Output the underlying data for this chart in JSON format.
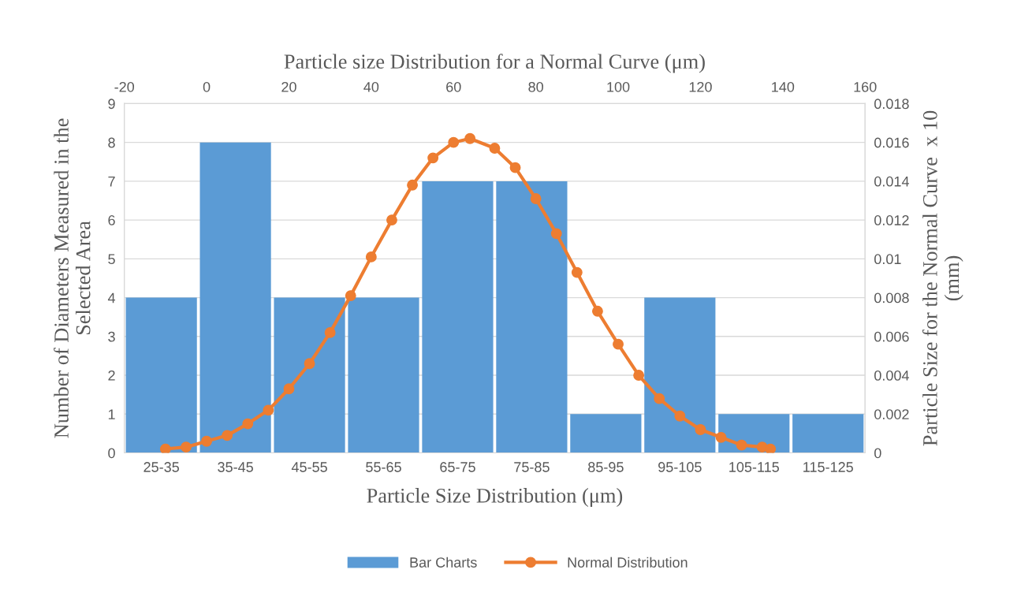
{
  "chart_data": [
    {
      "type": "bar",
      "xlabel": "Particle Size Distribution (μm)",
      "ylabel": "Number of Diameters Measured in the\nSelected Area",
      "categories": [
        "25-35",
        "35-45",
        "45-55",
        "55-65",
        "65-75",
        "75-85",
        "85-95",
        "95-105",
        "105-115",
        "115-125"
      ],
      "series": [
        {
          "name": "Bar Charts",
          "color": "#5b9bd5",
          "values": [
            4,
            8,
            4,
            4,
            7,
            7,
            1,
            4,
            1,
            1
          ]
        }
      ],
      "ylim": [
        0,
        9
      ],
      "yticks": [
        0,
        1,
        2,
        3,
        4,
        5,
        6,
        7,
        8,
        9
      ],
      "grid": "y",
      "legend": "bottom"
    },
    {
      "type": "line",
      "xlabel": "Particle size Distribution for a Normal Curve (μm)",
      "ylabel": "Particle Size for the Normal Curve  x 10\n(mm)",
      "x": [
        -10,
        -5,
        0,
        5,
        10,
        15,
        20,
        25,
        30,
        35,
        40,
        45,
        50,
        55,
        60,
        64,
        70,
        75,
        80,
        85,
        90,
        95,
        100,
        105,
        110,
        115,
        120,
        125,
        130,
        135,
        137
      ],
      "series": [
        {
          "name": "Normal Distribution",
          "color": "#ed7d31",
          "values": [
            0.0002,
            0.0003,
            0.0006,
            0.0009,
            0.0015,
            0.0022,
            0.0033,
            0.0046,
            0.0062,
            0.0081,
            0.0101,
            0.012,
            0.0138,
            0.0152,
            0.016,
            0.0162,
            0.0157,
            0.0147,
            0.0131,
            0.0113,
            0.0093,
            0.0073,
            0.0056,
            0.004,
            0.0028,
            0.0019,
            0.0012,
            0.0008,
            0.0004,
            0.0003,
            0.0002
          ]
        }
      ],
      "xlim": [
        -20,
        160
      ],
      "xticks": [
        -20,
        0,
        20,
        40,
        60,
        80,
        100,
        120,
        140,
        160
      ],
      "ylim": [
        0,
        0.018
      ],
      "yticks": [
        0,
        0.002,
        0.004,
        0.006,
        0.008,
        0.01,
        0.012,
        0.014,
        0.016,
        0.018
      ],
      "marker": "circle",
      "line_style": "solid",
      "legend": "bottom"
    }
  ]
}
